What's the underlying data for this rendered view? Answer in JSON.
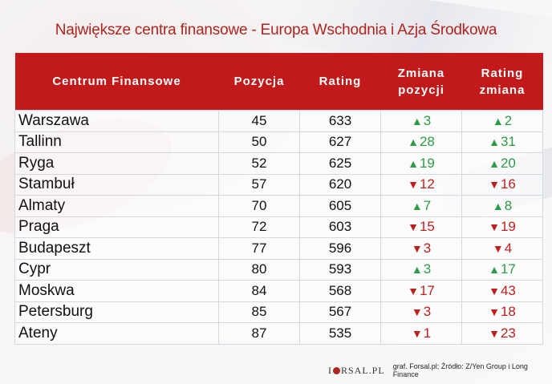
{
  "title": "Największe centra finansowe - Europa Wschodnia i Azja Środkowa",
  "table": {
    "headers": [
      {
        "line1": "Centrum Finansowe",
        "line2": ""
      },
      {
        "line1": "Pozycja",
        "line2": ""
      },
      {
        "line1": "Rating",
        "line2": ""
      },
      {
        "line1": "Zmiana",
        "line2": "pozycji"
      },
      {
        "line1": "Rating",
        "line2": "zmiana"
      }
    ],
    "rows": [
      {
        "name": "Warszawa",
        "pozycja": "45",
        "rating": "633",
        "zmiana_pozycji": {
          "dir": "up",
          "arrow": "▲",
          "value": "3"
        },
        "rating_zmiana": {
          "dir": "up",
          "arrow": "▲",
          "value": "2"
        }
      },
      {
        "name": "Tallinn",
        "pozycja": "50",
        "rating": "627",
        "zmiana_pozycji": {
          "dir": "up",
          "arrow": "▲",
          "value": "28"
        },
        "rating_zmiana": {
          "dir": "up",
          "arrow": "▲",
          "value": "31"
        }
      },
      {
        "name": "Ryga",
        "pozycja": "52",
        "rating": "625",
        "zmiana_pozycji": {
          "dir": "up",
          "arrow": "▲",
          "value": "19"
        },
        "rating_zmiana": {
          "dir": "up",
          "arrow": "▲",
          "value": "20"
        }
      },
      {
        "name": "Stambuł",
        "pozycja": "57",
        "rating": "620",
        "zmiana_pozycji": {
          "dir": "down",
          "arrow": "▼",
          "value": "12"
        },
        "rating_zmiana": {
          "dir": "down",
          "arrow": "▼",
          "value": "16"
        }
      },
      {
        "name": "Almaty",
        "pozycja": "70",
        "rating": "605",
        "zmiana_pozycji": {
          "dir": "up",
          "arrow": "▲",
          "value": "7"
        },
        "rating_zmiana": {
          "dir": "up",
          "arrow": "▲",
          "value": "8"
        }
      },
      {
        "name": "Praga",
        "pozycja": "72",
        "rating": "603",
        "zmiana_pozycji": {
          "dir": "down",
          "arrow": "▼",
          "value": "15"
        },
        "rating_zmiana": {
          "dir": "down",
          "arrow": "▼",
          "value": "19"
        }
      },
      {
        "name": "Budapeszt",
        "pozycja": "77",
        "rating": "596",
        "zmiana_pozycji": {
          "dir": "down",
          "arrow": "▼",
          "value": "3"
        },
        "rating_zmiana": {
          "dir": "down",
          "arrow": "▼",
          "value": "4"
        }
      },
      {
        "name": "Cypr",
        "pozycja": "80",
        "rating": "593",
        "zmiana_pozycji": {
          "dir": "up",
          "arrow": "▲",
          "value": "3"
        },
        "rating_zmiana": {
          "dir": "up",
          "arrow": "▲",
          "value": "17"
        }
      },
      {
        "name": "Moskwa",
        "pozycja": "84",
        "rating": "568",
        "zmiana_pozycji": {
          "dir": "down",
          "arrow": "▼",
          "value": "17"
        },
        "rating_zmiana": {
          "dir": "down",
          "arrow": "▼",
          "value": "43"
        }
      },
      {
        "name": "Petersburg",
        "pozycja": "85",
        "rating": "567",
        "zmiana_pozycji": {
          "dir": "down",
          "arrow": "▼",
          "value": "3"
        },
        "rating_zmiana": {
          "dir": "down",
          "arrow": "▼",
          "value": "18"
        }
      },
      {
        "name": "Ateny",
        "pozycja": "87",
        "rating": "535",
        "zmiana_pozycji": {
          "dir": "down",
          "arrow": "▼",
          "value": "1"
        },
        "rating_zmiana": {
          "dir": "down",
          "arrow": "▼",
          "value": "23"
        }
      }
    ]
  },
  "footer": {
    "logo_left": "I",
    "logo_right": "RSAL.PL",
    "source": "graf. Forsal.pl; Źródło: Z/Yen Group i Long Finance"
  },
  "colors": {
    "header_bg": "#c2191b",
    "title": "#b0231f",
    "up": "#2e9b46",
    "down": "#bf1e1e"
  },
  "chart_data": {
    "type": "table",
    "title": "Największe centra finansowe - Europa Wschodnia i Azja Środkowa",
    "columns": [
      "Centrum Finansowe",
      "Pozycja",
      "Rating",
      "Zmiana pozycji",
      "Rating zmiana"
    ],
    "rows": [
      [
        "Warszawa",
        45,
        633,
        3,
        2
      ],
      [
        "Tallinn",
        50,
        627,
        28,
        31
      ],
      [
        "Ryga",
        52,
        625,
        19,
        20
      ],
      [
        "Stambuł",
        57,
        620,
        -12,
        -16
      ],
      [
        "Almaty",
        70,
        605,
        7,
        8
      ],
      [
        "Praga",
        72,
        603,
        -15,
        -19
      ],
      [
        "Budapeszt",
        77,
        596,
        -3,
        -4
      ],
      [
        "Cypr",
        80,
        593,
        3,
        17
      ],
      [
        "Moskwa",
        84,
        568,
        -17,
        -43
      ],
      [
        "Petersburg",
        85,
        567,
        -3,
        -18
      ],
      [
        "Ateny",
        87,
        535,
        -1,
        -23
      ]
    ],
    "notes": "Positive change shown with green ▲, negative with red ▼",
    "source": "graf. Forsal.pl; Źródło: Z/Yen Group i Long Finance"
  }
}
